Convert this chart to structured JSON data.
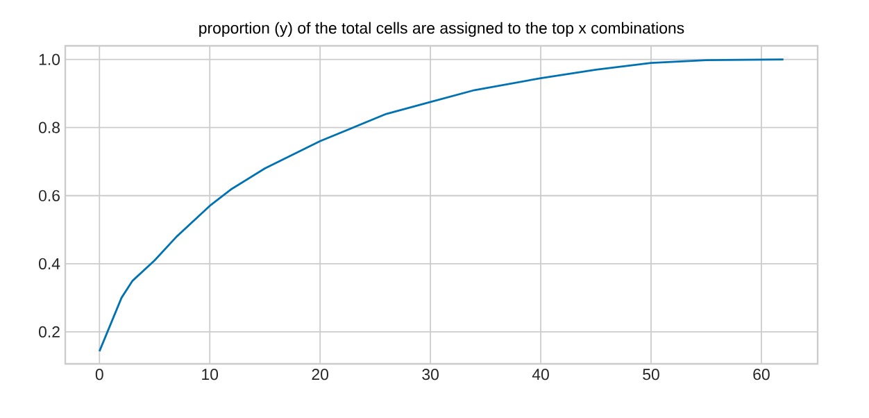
{
  "chart_data": {
    "type": "line",
    "title": "proportion (y) of the total cells are assigned to the top x combinations",
    "x": [
      0,
      2,
      3,
      5,
      7,
      10,
      12,
      15,
      20,
      26,
      30,
      34,
      40,
      45,
      50,
      55,
      62
    ],
    "series": [
      {
        "color": "#0072b2",
        "values": [
          0.143,
          0.3,
          0.35,
          0.41,
          0.48,
          0.57,
          0.62,
          0.68,
          0.76,
          0.84,
          0.875,
          0.91,
          0.945,
          0.97,
          0.99,
          0.998,
          1.0
        ]
      }
    ],
    "xlim": [
      -3.1,
      65.1
    ],
    "ylim": [
      0.106,
      1.04
    ],
    "xticks": [
      0,
      10,
      20,
      30,
      40,
      50,
      60
    ],
    "yticks": [
      0.2,
      0.4,
      0.6,
      0.8,
      {
        "value": 1.0,
        "label": "1.0"
      }
    ],
    "grid": true,
    "marker": "none",
    "line_style": "solid"
  }
}
